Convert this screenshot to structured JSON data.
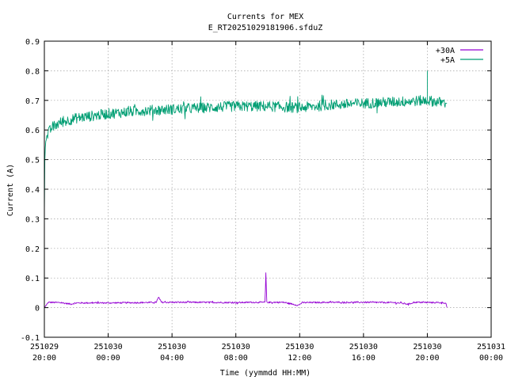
{
  "chart_data": {
    "type": "line",
    "title": "Currents for MEX",
    "subtitle": "E_RT20251029181906.sfduZ",
    "xlabel": "Time (yymmdd HH:MM)",
    "ylabel": "Current (A)",
    "ylim": [
      -0.1,
      0.9
    ],
    "yticks": [
      "-0.1",
      "0",
      "0.1",
      "0.2",
      "0.3",
      "0.4",
      "0.5",
      "0.6",
      "0.7",
      "0.8",
      "0.9"
    ],
    "xlim": [
      "251029 20:00",
      "251031 00:00"
    ],
    "xticks": [
      {
        "date": "251029",
        "time": "20:00"
      },
      {
        "date": "251030",
        "time": "00:00"
      },
      {
        "date": "251030",
        "time": "04:00"
      },
      {
        "date": "251030",
        "time": "08:00"
      },
      {
        "date": "251030",
        "time": "12:00"
      },
      {
        "date": "251030",
        "time": "16:00"
      },
      {
        "date": "251030",
        "time": "20:00"
      },
      {
        "date": "251031",
        "time": "00:00"
      }
    ],
    "grid": true,
    "legend_position": "top-right",
    "series": [
      {
        "name": "+30A",
        "color": "#9400d3",
        "points": [
          [
            "251029 20:00",
            0.0
          ],
          [
            "251029 20:15",
            0.018
          ],
          [
            "251029 21:00",
            0.017
          ],
          [
            "251029 21:40",
            0.012
          ],
          [
            "251029 22:00",
            0.016
          ],
          [
            "251030 00:00",
            0.016
          ],
          [
            "251030 02:00",
            0.017
          ],
          [
            "251030 03:00",
            0.018
          ],
          [
            "251030 03:10",
            0.035
          ],
          [
            "251030 03:20",
            0.018
          ],
          [
            "251030 06:00",
            0.018
          ],
          [
            "251030 08:00",
            0.017
          ],
          [
            "251030 09:00",
            0.018
          ],
          [
            "251030 09:50",
            0.018
          ],
          [
            "251030 09:53",
            0.123
          ],
          [
            "251030 09:56",
            0.018
          ],
          [
            "251030 11:00",
            0.018
          ],
          [
            "251030 11:55",
            0.008
          ],
          [
            "251030 12:10",
            0.017
          ],
          [
            "251030 14:00",
            0.018
          ],
          [
            "251030 16:00",
            0.018
          ],
          [
            "251030 18:00",
            0.017
          ],
          [
            "251030 18:50",
            0.012
          ],
          [
            "251030 19:10",
            0.018
          ],
          [
            "251030 21:00",
            0.017
          ],
          [
            "251030 21:10",
            0.015
          ],
          [
            "251030 21:14",
            0.0
          ]
        ]
      },
      {
        "name": "+5A",
        "color": "#009e73",
        "points": [
          [
            "251029 20:00",
            0.32
          ],
          [
            "251029 20:02",
            0.52
          ],
          [
            "251029 20:05",
            0.56
          ],
          [
            "251029 20:15",
            0.59
          ],
          [
            "251029 20:30",
            0.61
          ],
          [
            "251029 21:00",
            0.625
          ],
          [
            "251029 22:00",
            0.64
          ],
          [
            "251030 00:00",
            0.655
          ],
          [
            "251030 02:00",
            0.665
          ],
          [
            "251030 04:00",
            0.67
          ],
          [
            "251030 06:00",
            0.675
          ],
          [
            "251030 08:00",
            0.68
          ],
          [
            "251030 10:00",
            0.68
          ],
          [
            "251030 12:00",
            0.675
          ],
          [
            "251030 14:00",
            0.685
          ],
          [
            "251030 16:00",
            0.69
          ],
          [
            "251030 18:00",
            0.695
          ],
          [
            "251030 20:00",
            0.7
          ],
          [
            "251030 20:00",
            0.8
          ],
          [
            "251030 21:14",
            0.69
          ]
        ]
      }
    ]
  }
}
